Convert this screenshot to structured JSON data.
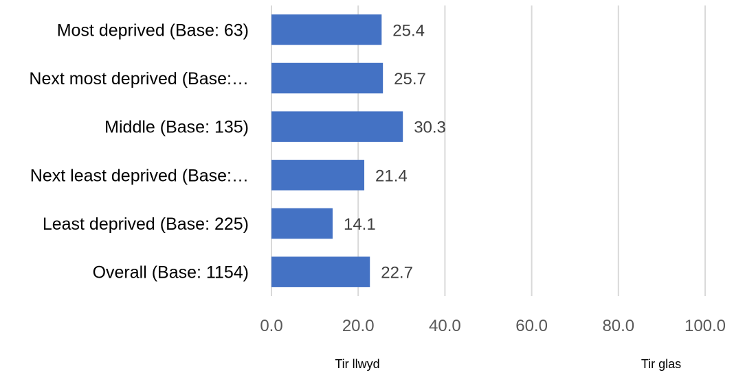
{
  "chart_data": {
    "type": "bar",
    "orientation": "horizontal",
    "categories": [
      "Most deprived (Base: 63)",
      "Next most deprived (Base:…",
      "Middle (Base: 135)",
      "Next least deprived (Base:…",
      "Least deprived (Base: 225)",
      "Overall (Base: 1154)"
    ],
    "values": [
      25.4,
      25.7,
      30.3,
      21.4,
      14.1,
      22.7
    ],
    "value_labels": [
      "25.4",
      "25.7",
      "30.3",
      "21.4",
      "14.1",
      "22.7"
    ],
    "xlim": [
      0,
      100
    ],
    "x_ticks": [
      "0.0",
      "20.0",
      "40.0",
      "60.0",
      "80.0",
      "100.0"
    ],
    "grid": true,
    "bar_color": "#4472c4",
    "grid_color": "#d9d9d9",
    "footer_labels": [
      "Tir llwyd",
      "Tir glas"
    ]
  }
}
